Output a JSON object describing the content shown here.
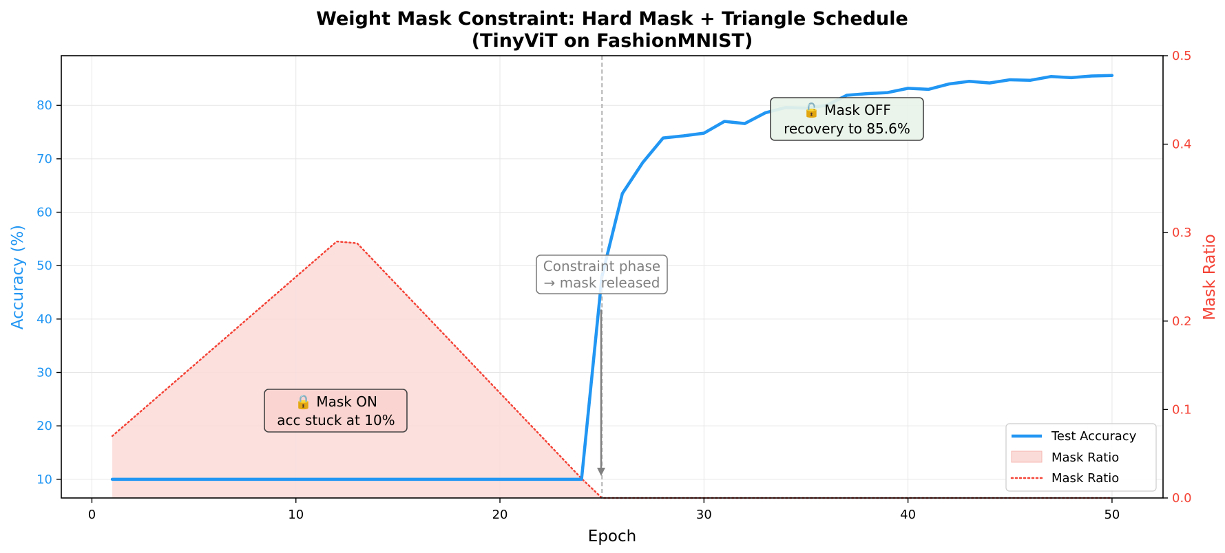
{
  "chart_data": {
    "type": "line",
    "title": "Weight Mask Constraint: Hard Mask + Triangle Schedule",
    "subtitle": "(TinyViT on FashionMNIST)",
    "xlabel": "Epoch",
    "ylabel_left": "Accuracy (%)",
    "ylabel_right": "Mask Ratio",
    "xlim": [
      -1.5,
      52.5
    ],
    "ylim_left": [
      6.5,
      89.3
    ],
    "ylim_right": [
      0.0,
      0.5
    ],
    "x_ticks": [
      0,
      10,
      20,
      30,
      40,
      50
    ],
    "y_left_ticks": [
      10,
      20,
      30,
      40,
      50,
      60,
      70,
      80
    ],
    "y_right_ticks": [
      0.0,
      0.1,
      0.2,
      0.3,
      0.4,
      0.5
    ],
    "grid": true,
    "legend_position": "lower-right",
    "legend": [
      "Test Accuracy",
      "Mask Ratio",
      "Mask Ratio"
    ],
    "colors": {
      "accuracy": "#2196F3",
      "mask": "#F44336",
      "mask_fill": "#FADBD8",
      "annotation_gray": "#808080"
    },
    "series": [
      {
        "name": "Test Accuracy",
        "axis": "left",
        "style": "solid",
        "x": [
          1,
          2,
          3,
          4,
          5,
          6,
          7,
          8,
          9,
          10,
          11,
          12,
          13,
          14,
          15,
          16,
          17,
          18,
          19,
          20,
          21,
          22,
          23,
          24,
          25,
          26,
          27,
          28,
          29,
          30,
          31,
          32,
          33,
          34,
          35,
          36,
          37,
          38,
          39,
          40,
          41,
          42,
          43,
          44,
          45,
          46,
          47,
          48,
          49,
          50
        ],
        "values": [
          10,
          10,
          10,
          10,
          10,
          10,
          10,
          10,
          10,
          10,
          10,
          10,
          10,
          10,
          10,
          10,
          10,
          10,
          10,
          10,
          10,
          10,
          10,
          10,
          48,
          63.5,
          69.3,
          73.9,
          74.3,
          74.8,
          77.0,
          76.6,
          78.6,
          79.6,
          79.5,
          80.0,
          81.9,
          82.2,
          82.4,
          83.2,
          83.0,
          84.0,
          84.5,
          84.2,
          84.8,
          84.7,
          85.4,
          85.2,
          85.5,
          85.6
        ]
      },
      {
        "name": "Mask Ratio",
        "axis": "right",
        "style": "dotted+fill",
        "x": [
          1,
          12,
          13,
          24,
          25,
          50
        ],
        "values": [
          0.07,
          0.29,
          0.288,
          0.022,
          0.0,
          0.0
        ]
      }
    ],
    "vline": {
      "x": 25,
      "style": "dashed"
    },
    "annotations": [
      {
        "id": "mask-on",
        "lines": [
          "🔒 Mask ON",
          "acc stuck at 10%"
        ]
      },
      {
        "id": "mask-off",
        "lines": [
          "🔓 Mask OFF",
          "recovery to 85.6%"
        ]
      },
      {
        "id": "constraint",
        "lines": [
          "Constraint phase",
          "→ mask released"
        ]
      }
    ]
  }
}
